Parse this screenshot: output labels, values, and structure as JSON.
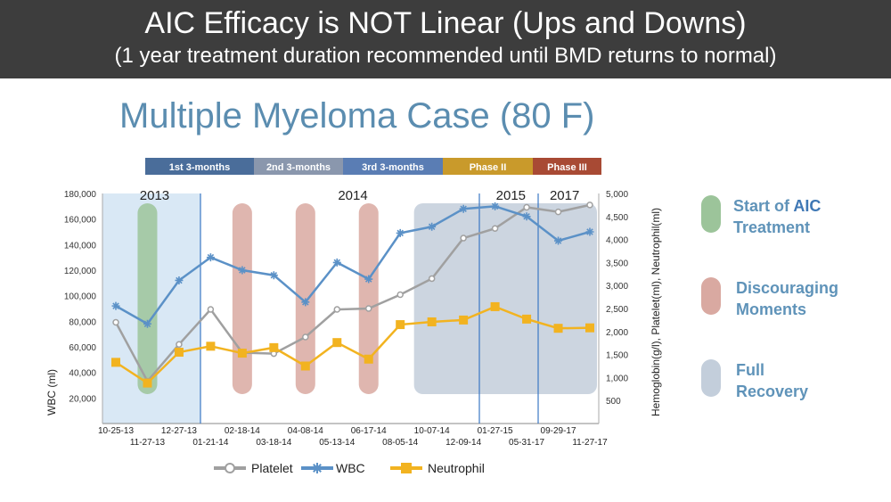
{
  "header": {
    "title": "AIC Efficacy is NOT Linear (Ups and Downs)",
    "subtitle": "(1 year treatment duration recommended until BMD returns to normal)"
  },
  "case_title": "Multiple Myeloma Case (80 F)",
  "phase_bar": [
    {
      "label": "1st 3-months",
      "color": "#4a6d9a"
    },
    {
      "label": "2nd 3-months",
      "color": "#8a97ad"
    },
    {
      "label": "3rd 3-months",
      "color": "#5a7db4"
    },
    {
      "label": "Phase II",
      "color": "#c99a2b"
    },
    {
      "label": "Phase III",
      "color": "#a84a34"
    }
  ],
  "side_legend": [
    {
      "label_line1": "Start of",
      "label_em": "AIC",
      "label_line2": "Treatment",
      "color": "#9cc49a"
    },
    {
      "label_line1": "Discouraging",
      "label_line2": "Moments",
      "color": "#d9a9a1"
    },
    {
      "label_line1": "Full",
      "label_line2": "Recovery",
      "color": "#c3cedb"
    }
  ],
  "chart_data": {
    "type": "line",
    "ylabel": "WBC (ml)",
    "y2label": "Hemoglobin(g/l), Platelet(ml), Neutrophil(ml)",
    "ylim": [
      0,
      180000
    ],
    "y2lim": [
      0,
      5000
    ],
    "yticks": [
      "20,000",
      "40,000",
      "60,000",
      "80,000",
      "100,000",
      "120,000",
      "140,000",
      "160,000",
      "180,000"
    ],
    "y2ticks": [
      "500",
      "1,000",
      "1,500",
      "2,000",
      "2,500",
      "3,000",
      "3,500",
      "4,000",
      "4,500",
      "5,000"
    ],
    "x": [
      "10-25-13",
      "11-27-13",
      "12-27-13",
      "01-21-14",
      "02-18-14",
      "03-18-14",
      "04-08-14",
      "05-13-14",
      "06-17-14",
      "08-05-14",
      "10-07-14",
      "12-09-14",
      "01-27-15",
      "05-31-17",
      "09-29-17",
      "11-27-17"
    ],
    "year_labels": [
      {
        "label": "2013",
        "at": 1
      },
      {
        "label": "2014",
        "at": 7.5
      },
      {
        "label": "2015",
        "at": 12.5
      },
      {
        "label": "2017",
        "at": 14.2
      }
    ],
    "series": [
      {
        "name": "Platelet",
        "axis": "right",
        "color": "#a0a0a0",
        "marker": "circle",
        "values": [
          2200,
          920,
          1720,
          2480,
          1540,
          1520,
          1880,
          2480,
          2500,
          2800,
          3150,
          4030,
          4240,
          4700,
          4600,
          4750
        ]
      },
      {
        "name": "WBC",
        "axis": "left",
        "color": "#5b91c7",
        "marker": "star",
        "values": [
          92000,
          78000,
          112000,
          130000,
          120000,
          116000,
          95000,
          126000,
          113000,
          149000,
          154000,
          168000,
          170000,
          162000,
          143000,
          150000
        ]
      },
      {
        "name": "Neutrophil",
        "axis": "right",
        "color": "#f2b320",
        "marker": "square",
        "values": [
          1330,
          880,
          1550,
          1680,
          1530,
          1650,
          1250,
          1760,
          1400,
          2150,
          2210,
          2250,
          2540,
          2270,
          2070,
          2080
        ]
      }
    ],
    "bands": [
      {
        "type": "start",
        "at": 1,
        "color": "#9cc49a"
      },
      {
        "type": "discouraging",
        "at": 4,
        "color": "#d9a9a1"
      },
      {
        "type": "discouraging",
        "at": 6,
        "color": "#d9a9a1"
      },
      {
        "type": "discouraging",
        "at": 8,
        "color": "#d9a9a1"
      },
      {
        "type": "recovery",
        "from": 10,
        "to": 15,
        "color": "#c3cedb"
      }
    ]
  }
}
